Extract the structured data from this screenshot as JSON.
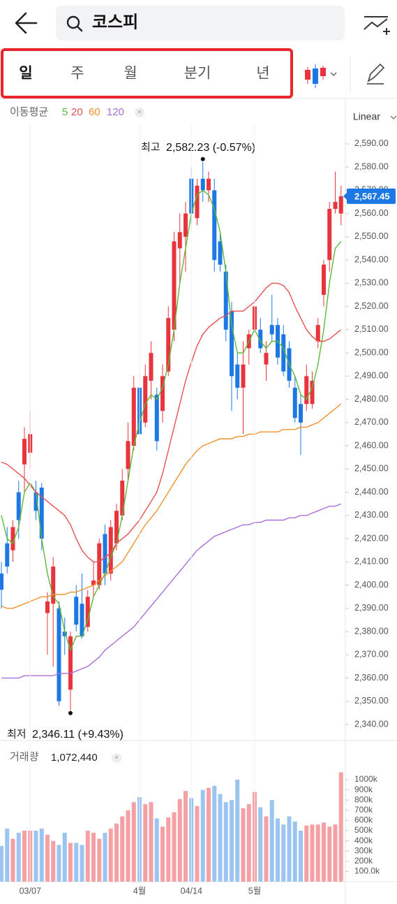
{
  "header": {
    "search": "코스피"
  },
  "tabs": [
    "일",
    "주",
    "월",
    "분기",
    "년"
  ],
  "scale_label": "Linear",
  "chart_data": [
    {
      "type": "candlestick",
      "legend_title": "이동평균",
      "ylim": [
        2334.6,
        2599.3
      ],
      "yticks": [
        {
          "value": 2340,
          "label": "2,340.00"
        },
        {
          "value": 2350,
          "label": "2,350.00"
        },
        {
          "value": 2360,
          "label": "2,360.00"
        },
        {
          "value": 2370,
          "label": "2,370.00"
        },
        {
          "value": 2380,
          "label": "2,380.00"
        },
        {
          "value": 2390,
          "label": "2,390.00"
        },
        {
          "value": 2400,
          "label": "2,400.00"
        },
        {
          "value": 2410,
          "label": "2,410.00"
        },
        {
          "value": 2420,
          "label": "2,420.00"
        },
        {
          "value": 2430,
          "label": "2,430.00"
        },
        {
          "value": 2440,
          "label": "2,440.00"
        },
        {
          "value": 2450,
          "label": "2,450.00"
        },
        {
          "value": 2460,
          "label": "2,460.00"
        },
        {
          "value": 2470,
          "label": "2,470.00"
        },
        {
          "value": 2480,
          "label": "2,480.00"
        },
        {
          "value": 2490,
          "label": "2,490.00"
        },
        {
          "value": 2500,
          "label": "2,500.00"
        },
        {
          "value": 2510,
          "label": "2,510.00"
        },
        {
          "value": 2520,
          "label": "2,520.00"
        },
        {
          "value": 2530,
          "label": "2,530.00"
        },
        {
          "value": 2540,
          "label": "2,540.00"
        },
        {
          "value": 2550,
          "label": "2,550.00"
        },
        {
          "value": 2560,
          "label": "2,560.00"
        },
        {
          "value": 2570,
          "label": "2,570.00"
        },
        {
          "value": 2580,
          "label": "2,580.00"
        },
        {
          "value": 2590,
          "label": "2,590.00"
        }
      ],
      "up_color": "#e8343c",
      "down_color": "#1e78e4",
      "open": [
        2405,
        2418,
        2415,
        2440,
        2452,
        2457,
        2440,
        2442,
        2388,
        2392,
        2390,
        2380,
        2355,
        2395,
        2392,
        2382,
        2400,
        2400,
        2422,
        2405,
        2418,
        2430,
        2450,
        2460,
        2485,
        2470,
        2488,
        2482,
        2475,
        2492,
        2510,
        2545,
        2550,
        2575,
        2558,
        2575,
        2570,
        2570,
        2548,
        2535,
        2518,
        2495,
        2485,
        2502,
        2510,
        2510,
        2495,
        2512,
        2512,
        2508,
        2502,
        2485,
        2478,
        2478,
        2478,
        2505,
        2525,
        2540,
        2562,
        2560
      ],
      "high": [
        2410,
        2425,
        2428,
        2445,
        2468,
        2475,
        2445,
        2444,
        2397,
        2412,
        2393,
        2386,
        2380,
        2400,
        2405,
        2398,
        2410,
        2420,
        2426,
        2428,
        2435,
        2450,
        2470,
        2490,
        2490,
        2495,
        2505,
        2485,
        2495,
        2520,
        2552,
        2560,
        2565,
        2580,
        2575,
        2582.23,
        2578,
        2575,
        2552,
        2538,
        2522,
        2500,
        2505,
        2510,
        2522,
        2515,
        2505,
        2525,
        2515,
        2512,
        2505,
        2490,
        2482,
        2495,
        2492,
        2515,
        2540,
        2565,
        2578,
        2572
      ],
      "low": [
        2390,
        2405,
        2410,
        2420,
        2440,
        2450,
        2428,
        2415,
        2370,
        2365,
        2348,
        2370,
        2346.11,
        2380,
        2377,
        2380,
        2395,
        2398,
        2400,
        2402,
        2415,
        2428,
        2445,
        2458,
        2460,
        2468,
        2480,
        2458,
        2470,
        2490,
        2505,
        2530,
        2535,
        2555,
        2555,
        2565,
        2565,
        2535,
        2535,
        2505,
        2475,
        2480,
        2465,
        2495,
        2505,
        2500,
        2488,
        2505,
        2495,
        2490,
        2485,
        2470,
        2456,
        2475,
        2476,
        2502,
        2520,
        2535,
        2560,
        2555
      ],
      "close": [
        2398,
        2408,
        2425,
        2428,
        2463,
        2465,
        2432,
        2420,
        2393,
        2408,
        2350,
        2378,
        2378,
        2383,
        2378,
        2395,
        2402,
        2418,
        2405,
        2425,
        2432,
        2445,
        2462,
        2485,
        2465,
        2490,
        2500,
        2462,
        2490,
        2515,
        2548,
        2552,
        2560,
        2560,
        2572,
        2570,
        2575,
        2540,
        2538,
        2510,
        2490,
        2485,
        2495,
        2508,
        2520,
        2502,
        2500,
        2508,
        2498,
        2492,
        2488,
        2472,
        2470,
        2490,
        2488,
        2512,
        2538,
        2562,
        2565,
        2567.45
      ],
      "last_price": {
        "value": 2567.45,
        "label": "2,567.45"
      },
      "annotations": [
        {
          "label": "최고",
          "kind": "high",
          "value": 2582.23,
          "text": "2,582.23 (-0.57%)"
        },
        {
          "label": "최저",
          "kind": "low",
          "value": 2346.11,
          "text": "2,346.11 (+9.43%)"
        }
      ],
      "series": [
        {
          "name": "5",
          "color": "#5cb83a",
          "values": [
            2430,
            2420,
            2418,
            2425,
            2440,
            2444,
            2440,
            2420,
            2405,
            2395,
            2392,
            2380,
            2372,
            2378,
            2378,
            2385,
            2395,
            2400,
            2405,
            2412,
            2418,
            2430,
            2445,
            2460,
            2470,
            2478,
            2482,
            2480,
            2485,
            2495,
            2510,
            2530,
            2545,
            2560,
            2568,
            2570,
            2568,
            2562,
            2552,
            2535,
            2512,
            2500,
            2500,
            2505,
            2510,
            2505,
            2502,
            2505,
            2505,
            2502,
            2495,
            2490,
            2482,
            2480,
            2485,
            2495,
            2510,
            2530,
            2545,
            2548
          ]
        },
        {
          "name": "20",
          "color": "#e8504f",
          "values": [
            2453,
            2452,
            2450,
            2448,
            2446,
            2443,
            2440,
            2438,
            2436,
            2434,
            2432,
            2430,
            2426,
            2420,
            2415,
            2412,
            2410,
            2410,
            2412,
            2414,
            2418,
            2420,
            2422,
            2425,
            2428,
            2432,
            2436,
            2440,
            2448,
            2458,
            2468,
            2478,
            2488,
            2496,
            2503,
            2508,
            2511,
            2513,
            2515,
            2516,
            2518,
            2518,
            2518,
            2520,
            2522,
            2525,
            2528,
            2530,
            2530,
            2529,
            2526,
            2520,
            2515,
            2510,
            2507,
            2505,
            2505,
            2506,
            2508,
            2510
          ]
        },
        {
          "name": "60",
          "color": "#f0922e",
          "values": [
            2391,
            2390,
            2390,
            2391,
            2392,
            2393,
            2394,
            2395,
            2395,
            2396,
            2396,
            2396,
            2397,
            2397,
            2398,
            2399,
            2400,
            2402,
            2404,
            2406,
            2408,
            2410,
            2414,
            2418,
            2422,
            2426,
            2429,
            2432,
            2436,
            2440,
            2444,
            2448,
            2452,
            2455,
            2458,
            2460,
            2461,
            2462,
            2463,
            2463,
            2463,
            2464,
            2464,
            2465,
            2465,
            2466,
            2466,
            2466,
            2466,
            2467,
            2467,
            2467,
            2468,
            2468,
            2469,
            2470,
            2472,
            2474,
            2476,
            2478
          ]
        },
        {
          "name": "120",
          "color": "#a96fd6",
          "values": [
            2360,
            2360,
            2360,
            2360,
            2361,
            2361,
            2361,
            2361,
            2361,
            2361,
            2362,
            2362,
            2362,
            2363,
            2364,
            2365,
            2367,
            2369,
            2372,
            2374,
            2376,
            2378,
            2380,
            2382,
            2385,
            2388,
            2391,
            2394,
            2397,
            2400,
            2403,
            2406,
            2409,
            2412,
            2415,
            2417,
            2419,
            2421,
            2422,
            2423,
            2424,
            2425,
            2426,
            2426,
            2427,
            2427,
            2428,
            2428,
            2428,
            2428,
            2429,
            2429,
            2430,
            2430,
            2431,
            2432,
            2433,
            2434,
            2434,
            2435
          ]
        }
      ]
    },
    {
      "type": "bar",
      "title": "거래량",
      "current": "1,072,440",
      "up_color": "#f4a0a4",
      "down_color": "#9cc4f0",
      "categories": [
        null,
        null,
        null,
        null,
        null,
        "03/07",
        null,
        null,
        null,
        null,
        null,
        null,
        null,
        null,
        null,
        null,
        null,
        null,
        null,
        null,
        null,
        null,
        null,
        null,
        "4월",
        null,
        null,
        null,
        null,
        null,
        null,
        null,
        null,
        "04/14",
        null,
        null,
        null,
        null,
        null,
        null,
        null,
        null,
        null,
        null,
        "5월",
        null,
        null,
        null,
        null,
        null,
        null,
        null,
        null,
        null,
        null,
        null,
        null,
        null,
        null,
        null
      ],
      "ylim": [
        0,
        1110
      ],
      "yticks": [
        {
          "value": 100,
          "label": "100.0k"
        },
        {
          "value": 200,
          "label": "200k"
        },
        {
          "value": 300,
          "label": "300k"
        },
        {
          "value": 400,
          "label": "400k"
        },
        {
          "value": 500,
          "label": "500k"
        },
        {
          "value": 600,
          "label": "600k"
        },
        {
          "value": 700,
          "label": "700k"
        },
        {
          "value": 800,
          "label": "800k"
        },
        {
          "value": 900,
          "label": "900k"
        },
        {
          "value": 1000,
          "label": "1000k"
        }
      ],
      "values": [
        350,
        520,
        420,
        480,
        500,
        500,
        500,
        520,
        460,
        400,
        360,
        480,
        380,
        380,
        360,
        500,
        480,
        420,
        480,
        520,
        570,
        640,
        700,
        780,
        830,
        760,
        780,
        620,
        540,
        630,
        680,
        810,
        890,
        820,
        740,
        900,
        920,
        940,
        860,
        780,
        800,
        1000,
        720,
        760,
        880,
        730,
        640,
        800,
        620,
        560,
        640,
        590,
        500,
        550,
        560,
        560,
        580,
        540,
        560,
        1072.44
      ]
    }
  ]
}
